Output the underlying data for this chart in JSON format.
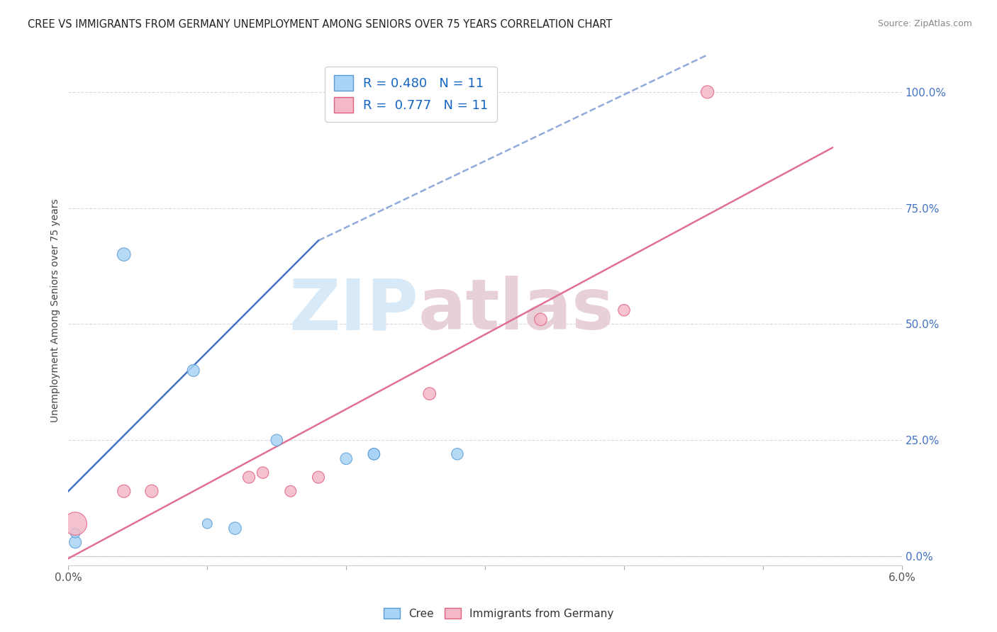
{
  "title": "CREE VS IMMIGRANTS FROM GERMANY UNEMPLOYMENT AMONG SENIORS OVER 75 YEARS CORRELATION CHART",
  "source": "Source: ZipAtlas.com",
  "ylabel": "Unemployment Among Seniors over 75 years",
  "ylabel_right_ticks": [
    "0.0%",
    "25.0%",
    "50.0%",
    "75.0%",
    "100.0%"
  ],
  "ylabel_right_vals": [
    0.0,
    0.25,
    0.5,
    0.75,
    1.0
  ],
  "xmin": 0.0,
  "xmax": 0.06,
  "ymin": -0.02,
  "ymax": 1.08,
  "cree_R": 0.48,
  "cree_N": 11,
  "germany_R": 0.777,
  "germany_N": 11,
  "cree_color": "#a8d4f5",
  "cree_edge_color": "#5b9bd5",
  "germany_color": "#f4b8c8",
  "germany_edge_color": "#e06080",
  "cree_line_color": "#4472c4",
  "germany_line_color": "#e07090",
  "cree_scatter": [
    [
      0.0005,
      0.03
    ],
    [
      0.0005,
      0.05
    ],
    [
      0.004,
      0.65
    ],
    [
      0.009,
      0.4
    ],
    [
      0.01,
      0.07
    ],
    [
      0.012,
      0.06
    ],
    [
      0.015,
      0.25
    ],
    [
      0.02,
      0.21
    ],
    [
      0.022,
      0.22
    ],
    [
      0.022,
      0.22
    ],
    [
      0.028,
      0.22
    ]
  ],
  "germany_scatter": [
    [
      0.0005,
      0.07
    ],
    [
      0.004,
      0.14
    ],
    [
      0.006,
      0.14
    ],
    [
      0.013,
      0.17
    ],
    [
      0.014,
      0.18
    ],
    [
      0.016,
      0.14
    ],
    [
      0.018,
      0.17
    ],
    [
      0.026,
      0.35
    ],
    [
      0.034,
      0.51
    ],
    [
      0.04,
      0.53
    ],
    [
      0.046,
      1.0
    ]
  ],
  "cree_sizes": [
    150,
    100,
    180,
    150,
    100,
    160,
    140,
    140,
    140,
    140,
    140
  ],
  "germany_sizes": [
    550,
    170,
    170,
    150,
    140,
    130,
    150,
    160,
    160,
    140,
    170
  ],
  "cree_trendline_solid": [
    [
      0.0,
      0.14
    ],
    [
      0.018,
      0.68
    ]
  ],
  "cree_trendline_dashed": [
    [
      0.018,
      0.68
    ],
    [
      0.046,
      1.08
    ]
  ],
  "germany_trendline": [
    [
      0.0,
      -0.005
    ],
    [
      0.055,
      0.88
    ]
  ],
  "watermark_zip": "ZIP",
  "watermark_atlas": "atlas",
  "watermark_color": "#d8eaf8",
  "watermark_atlas_color": "#e8d0d8",
  "background_color": "#ffffff",
  "grid_color": "#d8d8e8"
}
